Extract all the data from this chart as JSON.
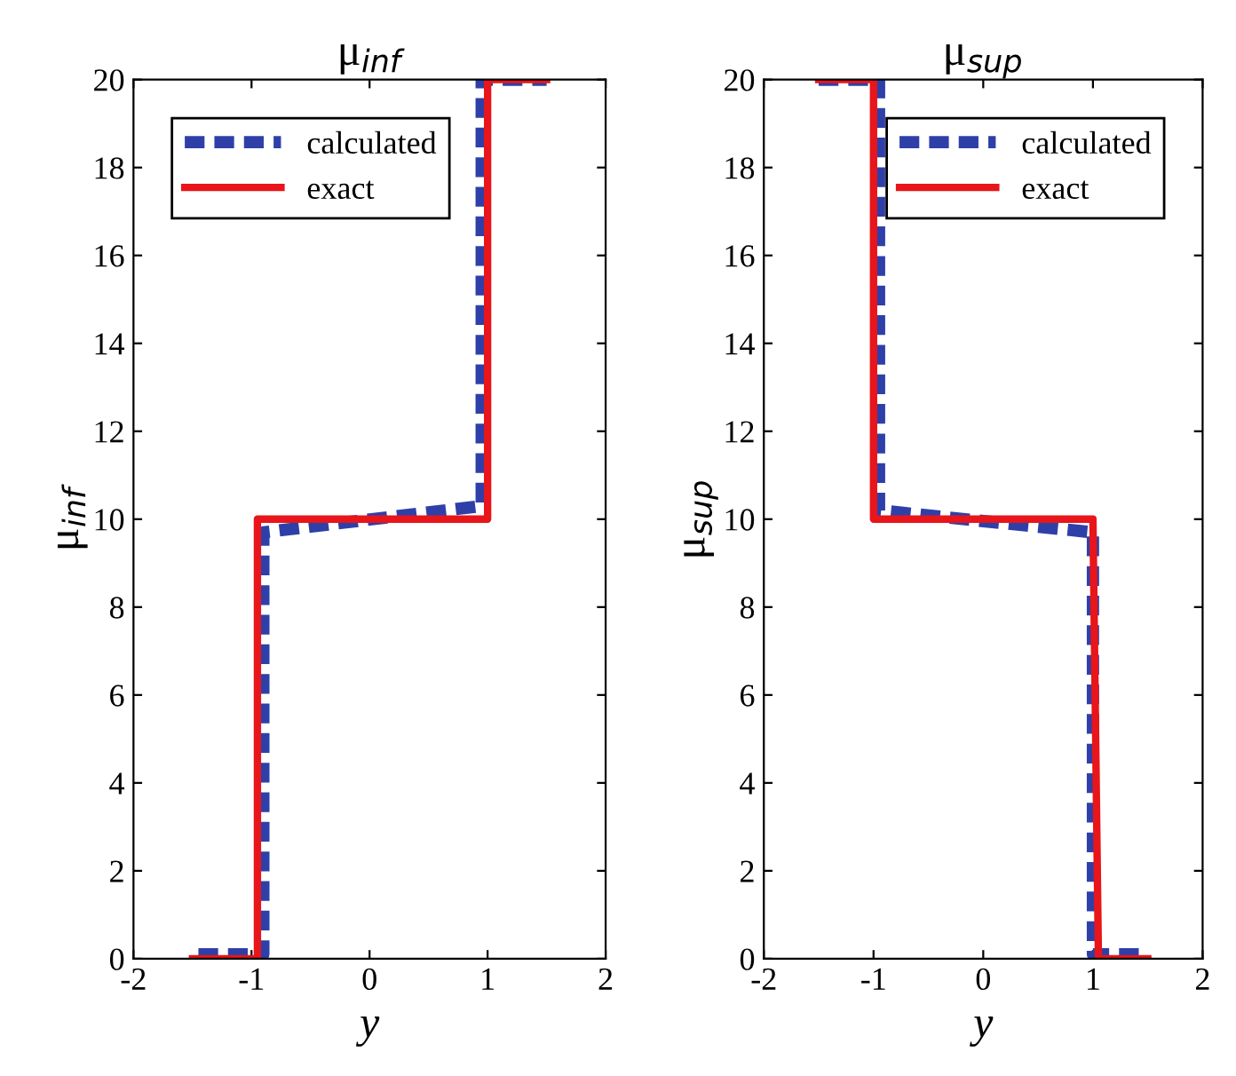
{
  "chart_data": [
    {
      "type": "line",
      "title": "μ$_{inf}$",
      "xlabel": "y",
      "ylabel": "μ$_{inf}$",
      "xlim": [
        -2,
        2
      ],
      "ylim": [
        0,
        20
      ],
      "xticks": [
        -2,
        -1,
        0,
        1,
        2
      ],
      "yticks": [
        0,
        2,
        4,
        6,
        8,
        10,
        12,
        14,
        16,
        18,
        20
      ],
      "legend": "top left",
      "grid": false,
      "series": [
        {
          "name": "calculated",
          "color": "#2e40a8",
          "line_style": "dashed",
          "x": [
            -1.45,
            -0.9,
            -0.9,
            0.95,
            0.95,
            1.5
          ],
          "values": [
            0.1,
            0.1,
            9.7,
            10.3,
            20,
            20
          ]
        },
        {
          "name": "exact",
          "color": "#e8151b",
          "line_style": "solid",
          "x": [
            -1.5,
            -0.95,
            -0.95,
            1,
            1,
            1.5
          ],
          "values": [
            0,
            0,
            10,
            10,
            20,
            20
          ]
        }
      ]
    },
    {
      "type": "line",
      "title": "μ$_{sup}$",
      "xlabel": "y",
      "ylabel": "μ$_{sup}$",
      "xlim": [
        -2,
        2
      ],
      "ylim": [
        0,
        20
      ],
      "xticks": [
        -2,
        -1,
        0,
        1,
        2
      ],
      "yticks": [
        0,
        2,
        4,
        6,
        8,
        10,
        12,
        14,
        16,
        18,
        20
      ],
      "legend": "top right",
      "grid": false,
      "series": [
        {
          "name": "calculated",
          "color": "#2e40a8",
          "line_style": "dashed",
          "x": [
            -1.5,
            -0.95,
            -0.95,
            1,
            1,
            1.5
          ],
          "values": [
            20,
            20,
            10.2,
            9.7,
            0.1,
            0.1
          ]
        },
        {
          "name": "exact",
          "color": "#e8151b",
          "line_style": "solid",
          "x": [
            -1.5,
            -1,
            -1,
            1,
            1.05,
            1.5
          ],
          "values": [
            20,
            20,
            10,
            10,
            0,
            0
          ]
        }
      ]
    }
  ]
}
